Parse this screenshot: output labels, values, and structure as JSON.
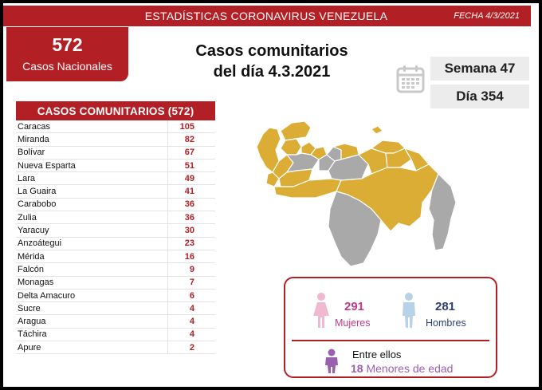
{
  "header": {
    "title": "ESTADÍSTICAS CORONAVIRUS VENEZUELA",
    "date": "FECHA 4/3/2021"
  },
  "national": {
    "count": "572",
    "label": "Casos Nacionales"
  },
  "headline": {
    "line1": "Casos comunitarios",
    "line2": "del día 4.3.2021"
  },
  "calendar": {
    "icon": "calendar-icon",
    "week": "Semana 47",
    "day": "Día 354"
  },
  "table": {
    "title": "CASOS COMUNITARIOS (572)",
    "rows": [
      {
        "state": "Caracas",
        "value": "105"
      },
      {
        "state": "Miranda",
        "value": "82"
      },
      {
        "state": "Bolívar",
        "value": "67"
      },
      {
        "state": "Nueva Esparta",
        "value": "51"
      },
      {
        "state": "Lara",
        "value": "49"
      },
      {
        "state": "La Guaira",
        "value": "41"
      },
      {
        "state": "Carabobo",
        "value": "36"
      },
      {
        "state": "Zulia",
        "value": "36"
      },
      {
        "state": "Yaracuy",
        "value": "30"
      },
      {
        "state": "Anzoátegui",
        "value": "23"
      },
      {
        "state": "Mérida",
        "value": "16"
      },
      {
        "state": "Falcón",
        "value": "9"
      },
      {
        "state": "Monagas",
        "value": "7"
      },
      {
        "state": "Delta Amacuro",
        "value": "6"
      },
      {
        "state": "Sucre",
        "value": "4"
      },
      {
        "state": "Aragua",
        "value": "4"
      },
      {
        "state": "Táchira",
        "value": "4"
      },
      {
        "state": "Apure",
        "value": "2"
      }
    ]
  },
  "gender": {
    "female_count": "291",
    "female_label": "Mujeres",
    "male_count": "281",
    "male_label": "Hombres",
    "between_label": "Entre ellos",
    "minors_count": "18",
    "minors_label": "Menores de edad"
  },
  "colors": {
    "brand_red": "#b21f24",
    "map_affected": "#dcad34",
    "map_unaffected": "#a9a9a9",
    "female": "#c4398a",
    "male": "#2c3e7a",
    "minor": "#9b5fb0"
  }
}
